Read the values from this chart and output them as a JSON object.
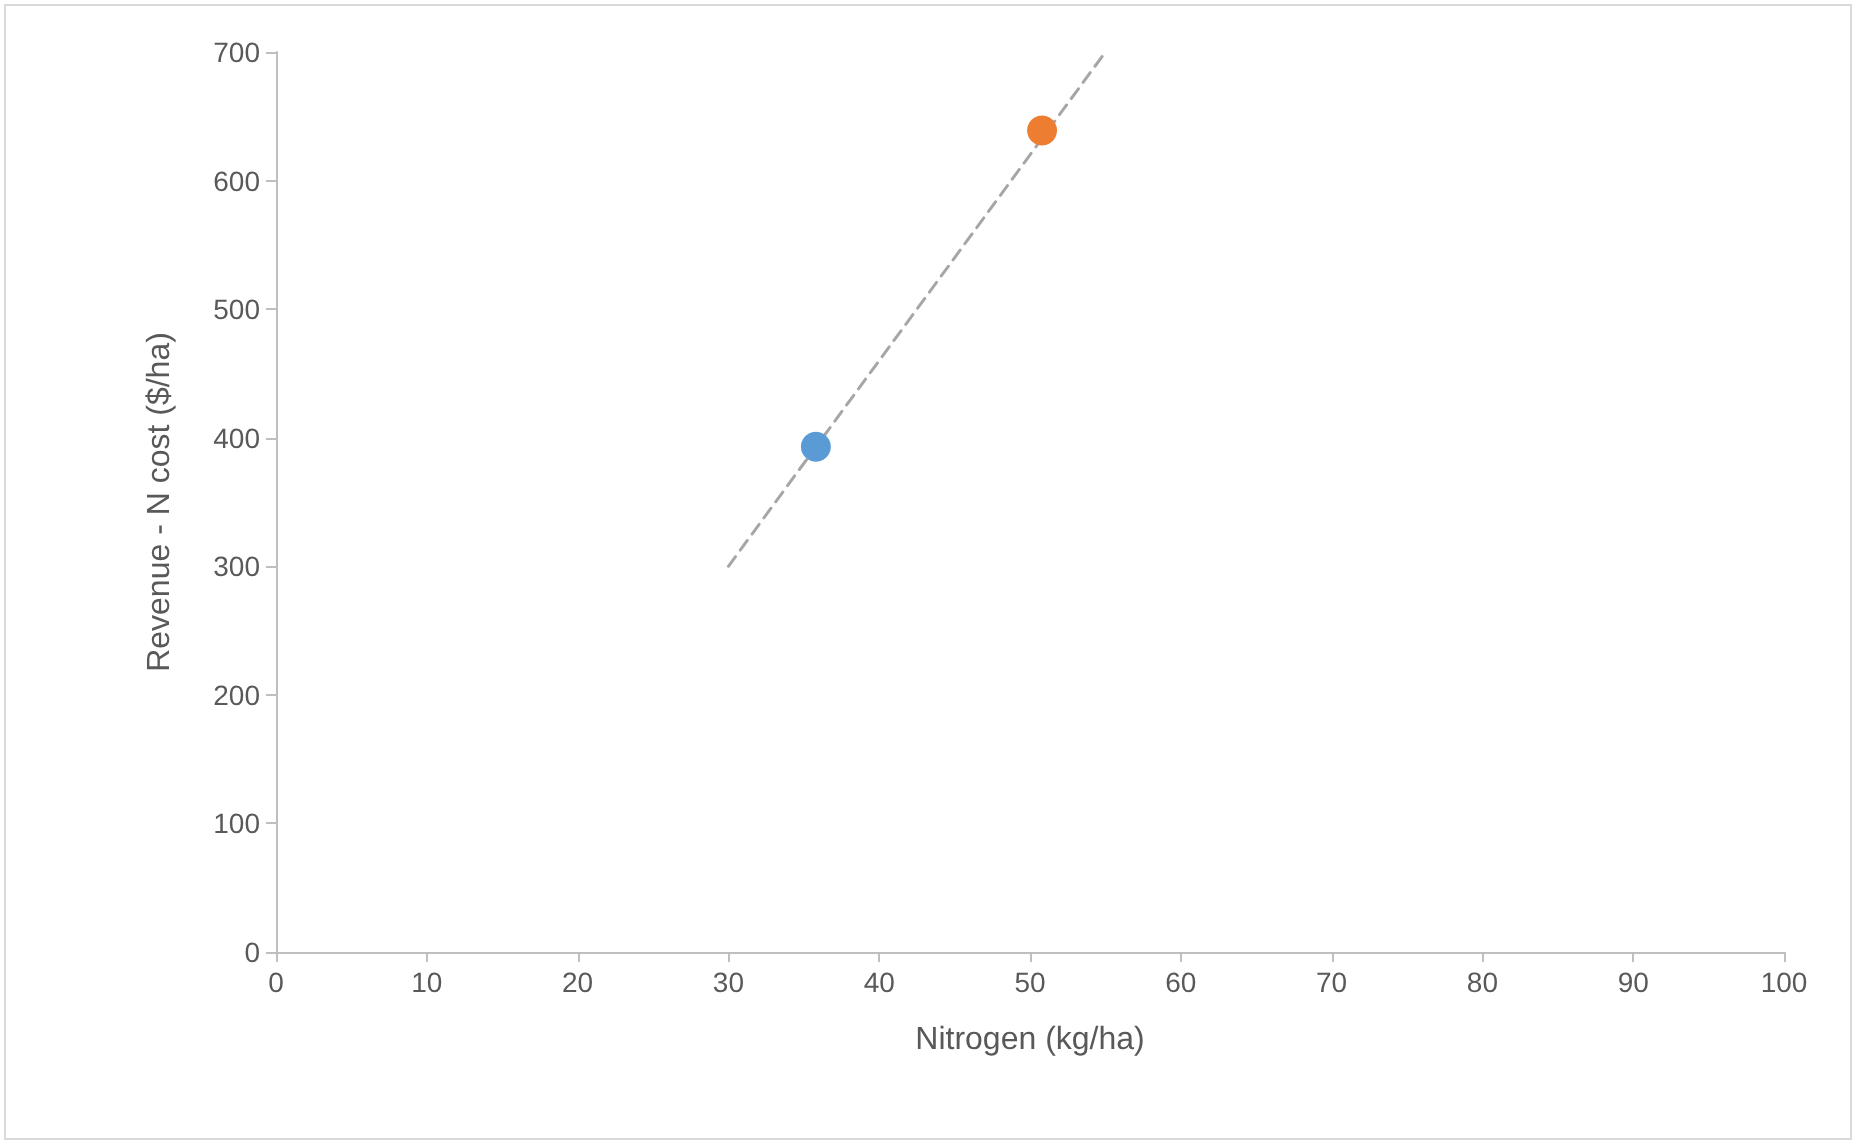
{
  "chart_data": {
    "type": "scatter",
    "xlabel": "Nitrogen (kg/ha)",
    "ylabel": "Revenue - N cost ($/ha)",
    "xlim": [
      0,
      100
    ],
    "xticks": [
      0,
      10,
      20,
      30,
      40,
      50,
      60,
      70,
      80,
      90,
      100
    ],
    "ylim": [
      0,
      700
    ],
    "yticks": [
      0,
      100,
      200,
      300,
      400,
      500,
      600,
      700
    ],
    "grid": false,
    "marker": "circle",
    "series": [
      {
        "type": "line",
        "color": "#a6a6a6",
        "line_style": "dashed",
        "marker": "none",
        "x": [
          30,
          55
        ],
        "values": [
          300,
          700
        ]
      },
      {
        "color": "#5b9bd5",
        "x": [
          35.8
        ],
        "values": [
          393
        ]
      },
      {
        "color": "#ed7d31",
        "x": [
          50.8
        ],
        "values": [
          639
        ]
      }
    ]
  }
}
